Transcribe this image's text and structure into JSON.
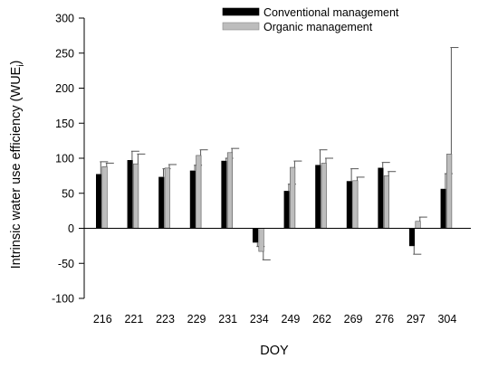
{
  "chart_data": {
    "type": "bar",
    "xlabel": "DOY",
    "ylabel_main": "Intrinsic water use efficiency (WUE",
    "ylabel_sub": "i",
    "ylabel_close": ")",
    "ylim": [
      -100,
      300
    ],
    "yticks": [
      -100,
      -50,
      0,
      50,
      100,
      150,
      200,
      250,
      300
    ],
    "categories": [
      "216",
      "221",
      "223",
      "229",
      "231",
      "234",
      "249",
      "262",
      "269",
      "276",
      "297",
      "304"
    ],
    "legend_position": "top-center",
    "grid": false,
    "series": [
      {
        "name": "Conventional management",
        "color": "#000000",
        "values": [
          77,
          97,
          73,
          82,
          96,
          -20,
          53,
          90,
          67,
          86,
          -25,
          56
        ],
        "errors": [
          18,
          13,
          12,
          8,
          4,
          6,
          10,
          22,
          18,
          8,
          12,
          22
        ]
      },
      {
        "name": "Organic management",
        "color": "#bdbdbd",
        "values": [
          88,
          92,
          86,
          104,
          108,
          -33,
          87,
          93,
          68,
          75,
          10,
          106
        ],
        "errors": [
          5,
          14,
          5,
          8,
          6,
          12,
          9,
          7,
          5,
          6,
          6,
          152
        ]
      }
    ]
  }
}
